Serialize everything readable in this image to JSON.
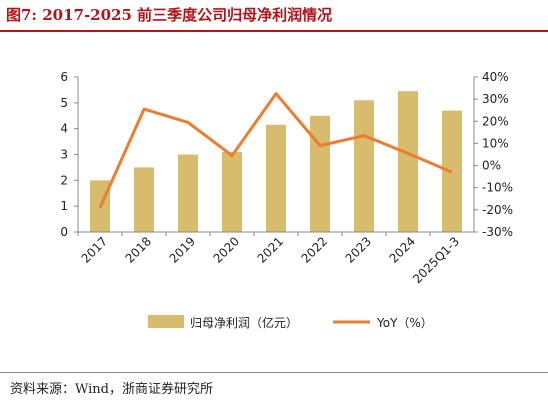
{
  "figure": {
    "title": "图7:   2017-2025 前三季度公司归母净利润情况",
    "source": "资料来源：Wind，浙商证券研究所"
  },
  "colors": {
    "bar": "#d6bc6c",
    "line": "#ec7d31",
    "title": "#b3131b",
    "axis": "#888888"
  },
  "chart_data": {
    "type": "bar",
    "title": "",
    "categories": [
      "2017",
      "2018",
      "2019",
      "2020",
      "2021",
      "2022",
      "2023",
      "2024",
      "2025Q1-3"
    ],
    "series": [
      {
        "name": "归母净利润（亿元）",
        "type": "bar",
        "axis": "left",
        "values": [
          2.0,
          2.5,
          3.0,
          3.1,
          4.15,
          4.5,
          5.1,
          5.45,
          4.7
        ]
      },
      {
        "name": "YoY（%）",
        "type": "line",
        "axis": "right",
        "values": [
          -19,
          25.5,
          19.5,
          4.5,
          32.5,
          9,
          13.5,
          5.5,
          -3
        ]
      }
    ],
    "ylim_left": [
      0,
      6
    ],
    "yticks_left": [
      "0",
      "1",
      "2",
      "3",
      "4",
      "5",
      "6"
    ],
    "ylim_right": [
      -30,
      40
    ],
    "yticks_right": [
      "-30%",
      "-20%",
      "-10%",
      "0%",
      "10%",
      "20%",
      "30%",
      "40%"
    ],
    "grid": false,
    "legend_position": "bottom"
  }
}
